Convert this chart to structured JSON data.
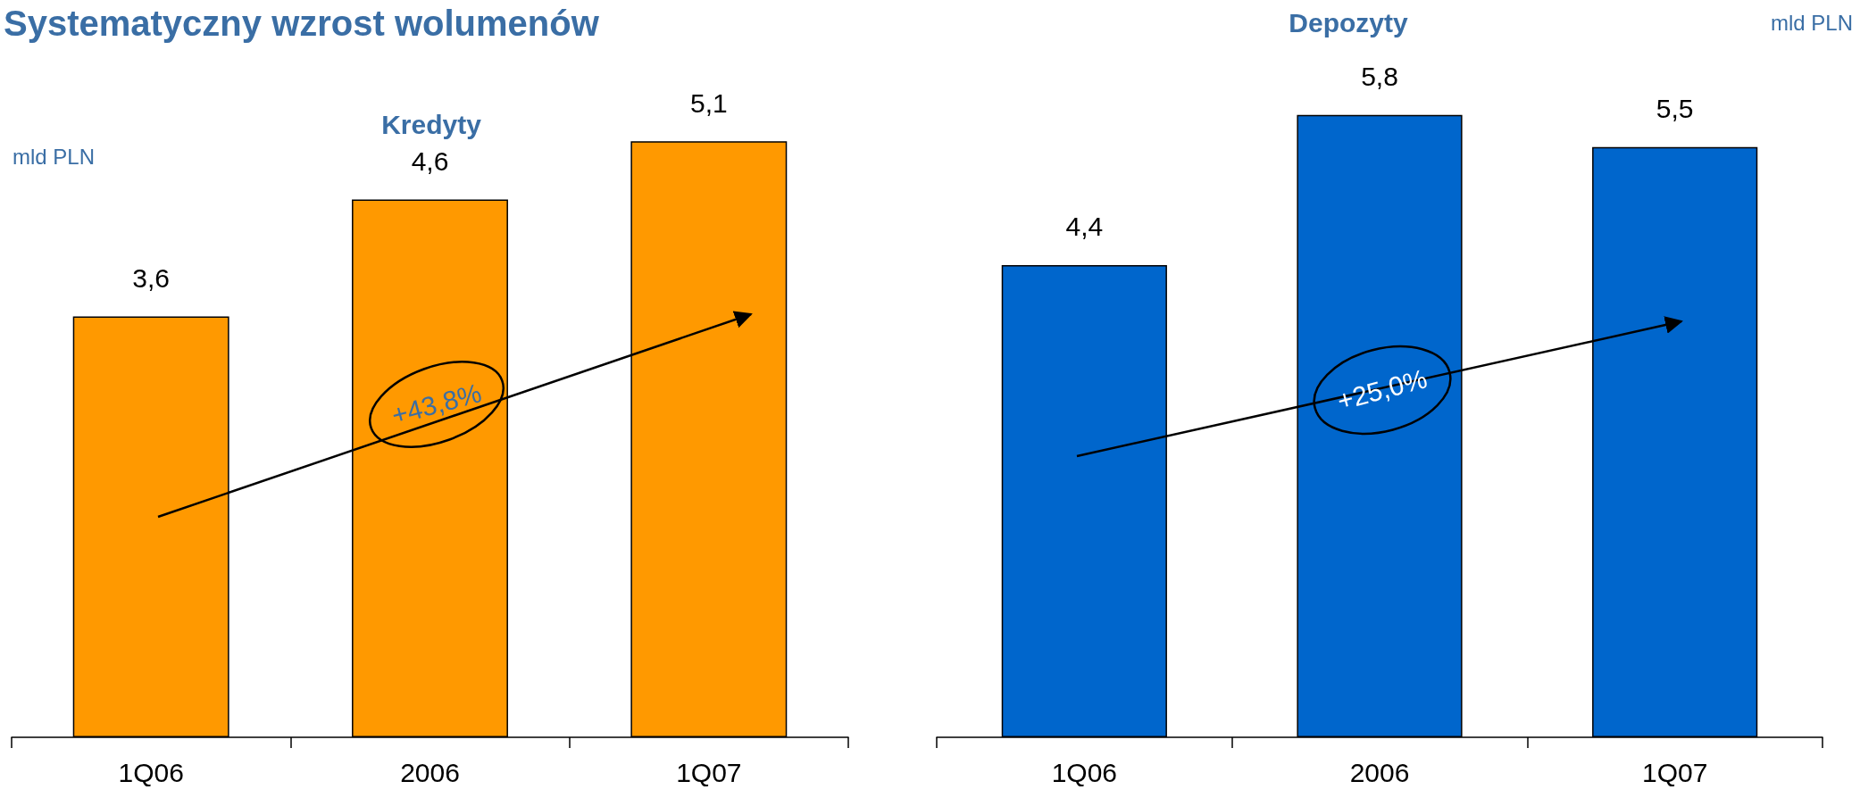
{
  "chart_data": [
    {
      "type": "bar",
      "title": "Systematyczny wzrost wolumenów",
      "subtitle": "Kredyty",
      "annotations": [
        "mld PLN",
        "+43,8%"
      ],
      "categories": [
        "1Q06",
        "2006",
        "1Q07"
      ],
      "values": [
        3.6,
        4.6,
        5.1
      ],
      "value_labels": [
        "3,6",
        "4,6",
        "5,1"
      ],
      "color": "#ff9900"
    },
    {
      "type": "bar",
      "title": "Depozyty",
      "annotations": [
        "mld PLN",
        "+25,0%"
      ],
      "categories": [
        "1Q06",
        "2006",
        "1Q07"
      ],
      "values": [
        4.4,
        5.8,
        5.5
      ],
      "value_labels": [
        "4,4",
        "5,8",
        "5,5"
      ],
      "color": "#0066cc"
    }
  ]
}
